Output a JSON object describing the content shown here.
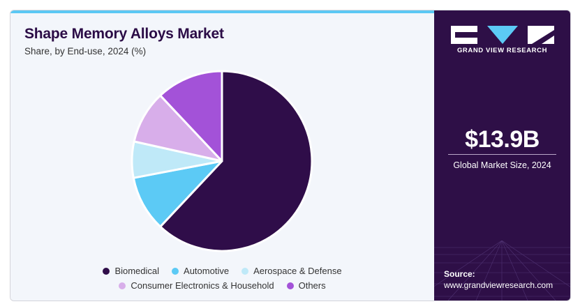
{
  "header": {
    "title": "Shape Memory Alloys Market",
    "subtitle": "Share, by End-use, 2024 (%)"
  },
  "chart_data": {
    "type": "pie",
    "title": "Shape Memory Alloys Market",
    "subtitle": "Share, by End-use, 2024 (%)",
    "categories": [
      "Biomedical",
      "Automotive",
      "Aerospace & Defense",
      "Consumer Electronics & Household",
      "Others"
    ],
    "values": [
      62,
      10,
      6.5,
      9.5,
      12
    ],
    "colors": [
      "#2f0d49",
      "#5ccaf5",
      "#bfe9f8",
      "#d8aeea",
      "#a352d8"
    ],
    "legend_position": "bottom"
  },
  "legend": {
    "items": [
      {
        "label": "Biomedical",
        "color": "#2f0d49"
      },
      {
        "label": "Automotive",
        "color": "#5ccaf5"
      },
      {
        "label": "Aerospace & Defense",
        "color": "#bfe9f8"
      },
      {
        "label": "Consumer Electronics & Household",
        "color": "#d8aeea"
      },
      {
        "label": "Others",
        "color": "#a352d8"
      }
    ]
  },
  "sidebar": {
    "brand": "GRAND VIEW RESEARCH",
    "market_size": "$13.9B",
    "market_size_label": "Global Market Size, 2024",
    "source_label": "Source:",
    "source_url": "www.grandviewresearch.com",
    "logo_icon": "grand-view-research-logo"
  },
  "colors": {
    "panel_bg": "#2e0f47",
    "accent_bar": "#5bc8f4",
    "title": "#2b0c46"
  }
}
